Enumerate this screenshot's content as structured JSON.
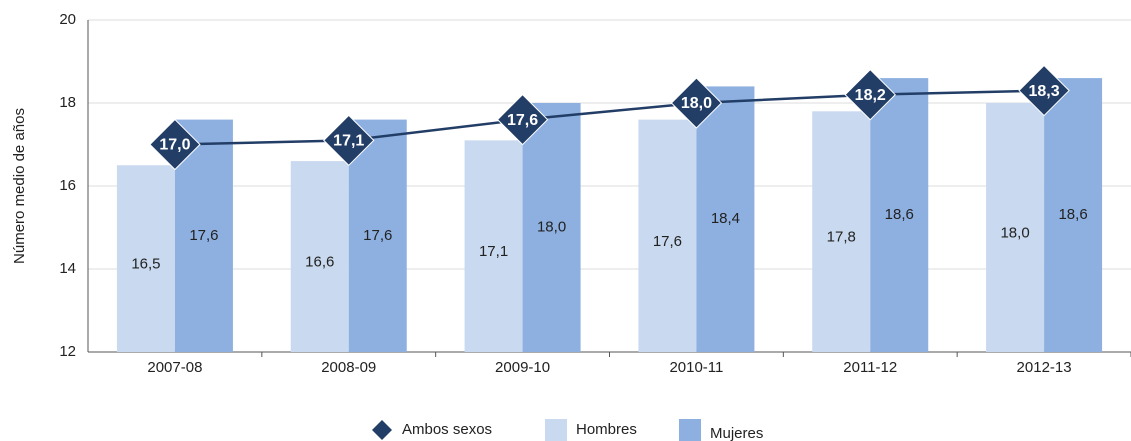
{
  "chart_data": {
    "type": "bar",
    "y_label": "Número medio de años",
    "categories": [
      "2007-08",
      "2008-09",
      "2009-10",
      "2010-11",
      "2011-12",
      "2012-13"
    ],
    "series": [
      {
        "name": "Hombres",
        "color": "#c9d9ef",
        "values": [
          16.5,
          16.6,
          17.1,
          17.6,
          17.8,
          18.0
        ],
        "value_labels": [
          "16,5",
          "16,6",
          "17,1",
          "17,6",
          "17,8",
          "18,0"
        ]
      },
      {
        "name": "Mujeres",
        "color": "#8db0e0",
        "values": [
          17.6,
          17.6,
          18.0,
          18.4,
          18.6,
          18.6
        ],
        "value_labels": [
          "17,6",
          "17,6",
          "18,0",
          "18,4",
          "18,6",
          "18,6"
        ]
      },
      {
        "name": "Ambos sexos",
        "type": "line",
        "color": "#233e66",
        "values": [
          17.0,
          17.1,
          17.6,
          18.0,
          18.2,
          18.3
        ],
        "value_labels": [
          "17,0",
          "17,1",
          "17,6",
          "18,0",
          "18,2",
          "18,3"
        ]
      }
    ],
    "ylim": [
      12,
      20
    ],
    "yticks": [
      12,
      14,
      16,
      18,
      20
    ],
    "grid": true,
    "legend": "bottom"
  }
}
